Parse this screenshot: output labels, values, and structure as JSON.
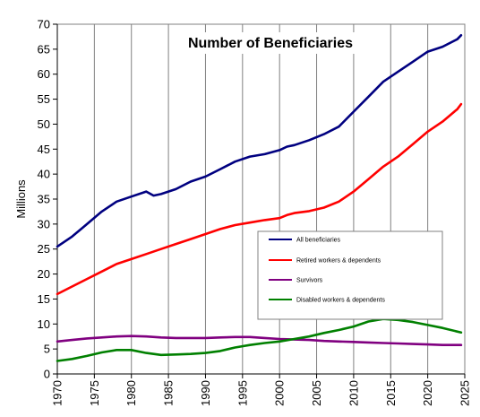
{
  "chart_data": {
    "type": "line",
    "title": "Number of Beneficiaries",
    "xlabel": "",
    "ylabel": "Millions",
    "xlim": [
      1970,
      2025
    ],
    "ylim": [
      0,
      70
    ],
    "xticks": [
      1970,
      1975,
      1980,
      1985,
      1990,
      1995,
      2000,
      2005,
      2010,
      2015,
      2020,
      2025
    ],
    "yticks": [
      0,
      5,
      10,
      15,
      20,
      25,
      30,
      35,
      40,
      45,
      50,
      55,
      60,
      65,
      70
    ],
    "grid": {
      "vertical": true,
      "horizontal": false
    },
    "legend_position": "center-right",
    "series": [
      {
        "name": "All beneficiaries",
        "color": "#000080",
        "x": [
          1970,
          1972,
          1974,
          1976,
          1978,
          1980,
          1982,
          1983,
          1984,
          1986,
          1988,
          1990,
          1992,
          1994,
          1996,
          1998,
          2000,
          2001,
          2002,
          2004,
          2006,
          2008,
          2010,
          2012,
          2014,
          2016,
          2018,
          2020,
          2022,
          2024,
          2024.5
        ],
        "values": [
          25.5,
          27.5,
          30.0,
          32.5,
          34.5,
          35.5,
          36.5,
          35.7,
          36.0,
          37.0,
          38.5,
          39.5,
          41.0,
          42.5,
          43.5,
          44.0,
          44.8,
          45.5,
          45.8,
          46.8,
          48.0,
          49.5,
          52.5,
          55.5,
          58.5,
          60.5,
          62.5,
          64.5,
          65.5,
          67.0,
          67.8
        ]
      },
      {
        "name": "Retired workers & dependents",
        "color": "#ff0000",
        "x": [
          1970,
          1972,
          1974,
          1976,
          1978,
          1980,
          1982,
          1984,
          1986,
          1988,
          1990,
          1992,
          1994,
          1996,
          1998,
          2000,
          2001,
          2002,
          2004,
          2006,
          2008,
          2010,
          2012,
          2014,
          2016,
          2018,
          2020,
          2022,
          2024,
          2024.5
        ],
        "values": [
          16.0,
          17.5,
          19.0,
          20.5,
          22.0,
          23.0,
          24.0,
          25.0,
          26.0,
          27.0,
          28.0,
          29.0,
          29.8,
          30.3,
          30.8,
          31.2,
          31.8,
          32.2,
          32.6,
          33.3,
          34.5,
          36.5,
          39.0,
          41.5,
          43.5,
          46.0,
          48.5,
          50.5,
          53.0,
          54.0
        ]
      },
      {
        "name": "Survivors",
        "color": "#800080",
        "x": [
          1970,
          1972,
          1974,
          1976,
          1978,
          1980,
          1982,
          1984,
          1986,
          1988,
          1990,
          1992,
          1994,
          1996,
          1998,
          2000,
          2002,
          2004,
          2006,
          2008,
          2010,
          2012,
          2014,
          2016,
          2018,
          2020,
          2022,
          2024.5
        ],
        "values": [
          6.5,
          6.8,
          7.1,
          7.3,
          7.5,
          7.6,
          7.5,
          7.3,
          7.2,
          7.2,
          7.2,
          7.3,
          7.4,
          7.4,
          7.2,
          7.0,
          6.9,
          6.8,
          6.6,
          6.5,
          6.4,
          6.3,
          6.2,
          6.1,
          6.0,
          5.9,
          5.8,
          5.8
        ]
      },
      {
        "name": "Disabled workers & dependents",
        "color": "#008000",
        "x": [
          1970,
          1972,
          1974,
          1976,
          1978,
          1980,
          1982,
          1984,
          1986,
          1988,
          1990,
          1992,
          1994,
          1996,
          1998,
          2000,
          2002,
          2004,
          2006,
          2008,
          2010,
          2012,
          2014,
          2016,
          2018,
          2020,
          2022,
          2024.5
        ],
        "values": [
          2.6,
          3.0,
          3.6,
          4.3,
          4.8,
          4.8,
          4.2,
          3.8,
          3.9,
          4.0,
          4.2,
          4.6,
          5.3,
          5.8,
          6.2,
          6.5,
          7.0,
          7.5,
          8.2,
          8.8,
          9.5,
          10.5,
          11.0,
          10.8,
          10.4,
          9.8,
          9.2,
          8.3
        ]
      }
    ]
  }
}
